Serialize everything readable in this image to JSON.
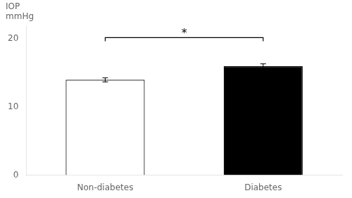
{
  "chart_data": {
    "type": "bar",
    "ylabel": "IOP\nmmHg",
    "categories": [
      "Non-diabetes",
      "Diabetes"
    ],
    "values": [
      14.0,
      16.0
    ],
    "errors": [
      0.3,
      0.35
    ],
    "colors": [
      "#ffffff",
      "#000000"
    ],
    "ylim": [
      0,
      22
    ],
    "yticks": [
      0,
      10,
      20
    ],
    "grid": false,
    "annotations": [
      {
        "text": "*",
        "from": "Non-diabetes",
        "to": "Diabetes",
        "y": 20.2
      }
    ]
  }
}
